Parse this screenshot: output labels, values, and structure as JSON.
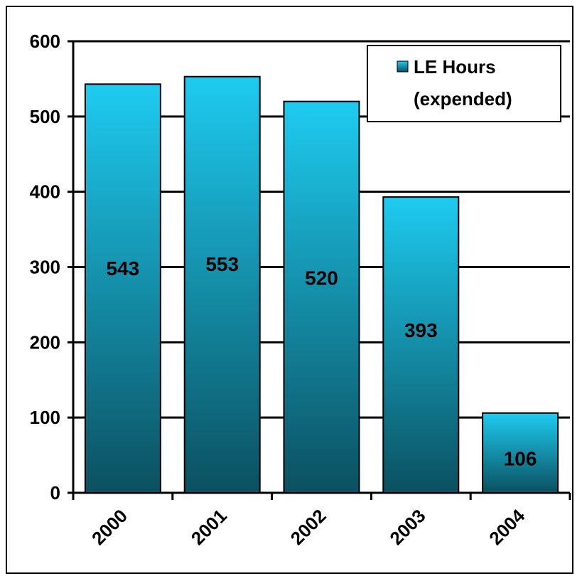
{
  "chart_data": {
    "type": "bar",
    "categories": [
      "2000",
      "2001",
      "2002",
      "2003",
      "2004"
    ],
    "series": [
      {
        "name": "LE Hours (expended)",
        "values": [
          543,
          553,
          520,
          393,
          106
        ]
      }
    ],
    "data_labels": [
      "543",
      "553",
      "520",
      "393",
      "106"
    ],
    "ylim": [
      0,
      600
    ],
    "yticks": [
      "0",
      "100",
      "200",
      "300",
      "400",
      "500",
      "600"
    ],
    "grid": true,
    "legend_position": "top-right",
    "legend_lines": [
      "LE Hours",
      "(expended)"
    ],
    "colors": {
      "bar_top": "#1ecbf0",
      "bar_bottom": "#0b5060",
      "grid": "#000000"
    }
  }
}
